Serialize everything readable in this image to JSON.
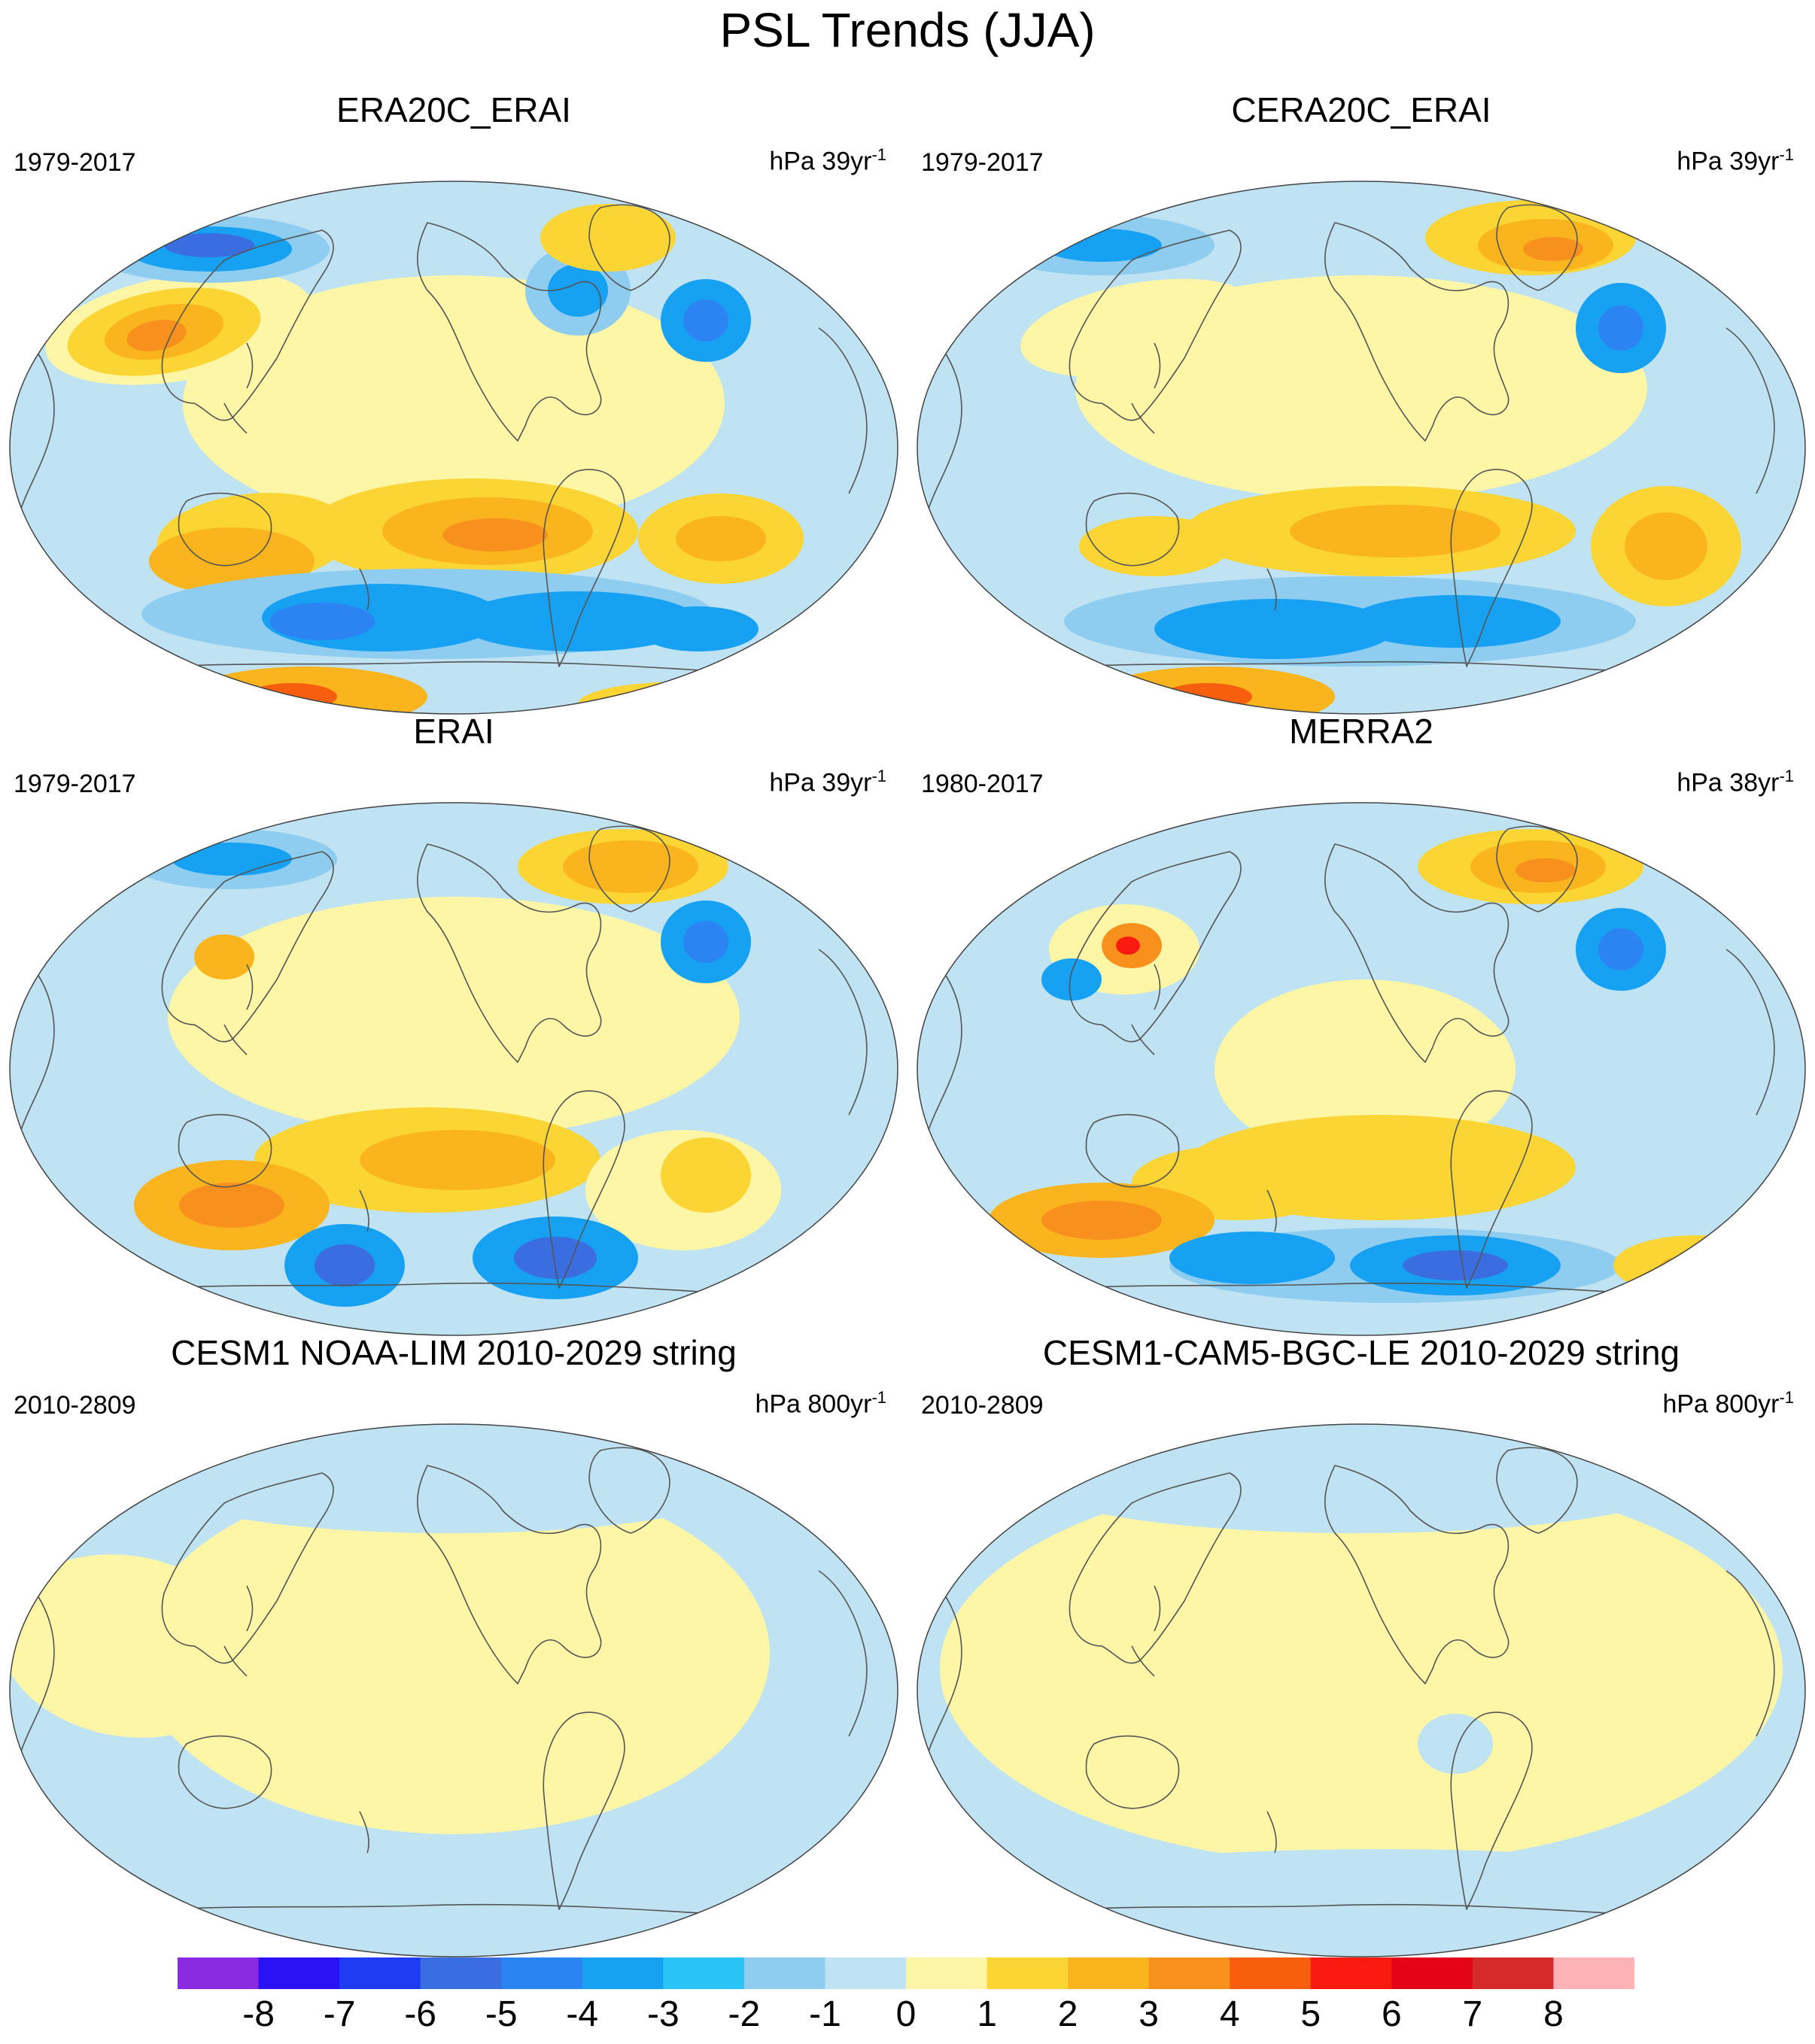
{
  "title": "PSL Trends (JJA)",
  "panels": [
    {
      "title": "ERA20C_ERAI",
      "period": "1979-2017",
      "units": "hPa 39yr",
      "units_exp": "-1"
    },
    {
      "title": "CERA20C_ERAI",
      "period": "1979-2017",
      "units": "hPa 39yr",
      "units_exp": "-1"
    },
    {
      "title": "ERAI",
      "period": "1979-2017",
      "units": "hPa 39yr",
      "units_exp": "-1"
    },
    {
      "title": "MERRA2",
      "period": "1980-2017",
      "units": "hPa 38yr",
      "units_exp": "-1"
    },
    {
      "title": "CESM1 NOAA-LIM 2010-2029 string",
      "period": "2010-2809",
      "units": "hPa 800yr",
      "units_exp": "-1"
    },
    {
      "title": "CESM1-CAM5-BGC-LE 2010-2029 string",
      "period": "2010-2809",
      "units": "hPa 800yr",
      "units_exp": "-1"
    }
  ],
  "colorbar": {
    "labels": [
      "-8",
      "-7",
      "-6",
      "-5",
      "-4",
      "-3",
      "-2",
      "-1",
      "0",
      "1",
      "2",
      "3",
      "4",
      "5",
      "6",
      "7",
      "8"
    ],
    "colors": [
      "#8a2be2",
      "#2a12f5",
      "#1f3cf2",
      "#3a6de0",
      "#2b84f2",
      "#17a1f2",
      "#2ac3f7",
      "#8fcdf0",
      "#bfe3f3",
      "#fdf6a6",
      "#fad534",
      "#fab41e",
      "#f8901e",
      "#f75e0e",
      "#fb1a10",
      "#e4041a",
      "#d42a2a",
      "#fdb2b6"
    ]
  },
  "palette": {
    "neg_light": "#bfe3f3",
    "neg_mid": "#8fcdf0",
    "neg_2": "#2ac3f7",
    "neg_3": "#17a1f2",
    "neg_4": "#2b84f2",
    "neg_5": "#3a6de0",
    "pos_light": "#fdf6a6",
    "pos_1": "#fad534",
    "pos_2": "#fab41e",
    "pos_3": "#f8901e",
    "pos_4": "#f75e0e",
    "pos_5": "#fb1a10",
    "coast": "#555555"
  }
}
